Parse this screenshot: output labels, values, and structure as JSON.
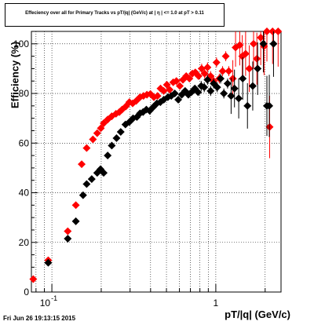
{
  "chart_data": {
    "type": "scatter",
    "title": "Effeciency over all for Primary Tracks vs pT/|q| (GeV/c) at | η | <= 1.0 at pT > 0.11",
    "xlabel": "pT/|q| (GeV/c)",
    "ylabel": "Efficiency (%)",
    "x_scale": "log",
    "xlim": [
      0.075,
      2.5
    ],
    "ylim": [
      0,
      105
    ],
    "x_tick_labels": [
      "10",
      "-1",
      "1"
    ],
    "y_ticks": [
      0,
      20,
      40,
      60,
      80,
      100
    ],
    "y_tick_labels": [
      "0",
      "20",
      "40",
      "60",
      "80",
      "100"
    ],
    "grid": true,
    "legend": "none",
    "series": [
      {
        "color": "#ff0000",
        "points": [
          [
            0.077,
            5.2
          ],
          [
            0.095,
            12.8
          ],
          [
            0.125,
            24.5
          ],
          [
            0.14,
            35.0
          ],
          [
            0.152,
            51.5
          ],
          [
            0.163,
            58.0
          ],
          [
            0.178,
            61.5
          ],
          [
            0.189,
            64.0
          ],
          [
            0.199,
            66.0
          ],
          [
            0.207,
            68.0
          ],
          [
            0.219,
            69.5
          ],
          [
            0.232,
            70.8
          ],
          [
            0.246,
            71.8
          ],
          [
            0.258,
            72.5
          ],
          [
            0.268,
            73.5
          ],
          [
            0.283,
            74.8
          ],
          [
            0.297,
            76.5
          ],
          [
            0.311,
            76.0
          ],
          [
            0.327,
            77.0
          ],
          [
            0.345,
            78.5
          ],
          [
            0.362,
            79.0
          ],
          [
            0.38,
            79.5
          ],
          [
            0.399,
            79.8
          ],
          [
            0.419,
            78.5
          ],
          [
            0.441,
            79.0
          ],
          [
            0.46,
            82.0
          ],
          [
            0.481,
            81.0
          ],
          [
            0.503,
            83.5
          ],
          [
            0.523,
            81.5
          ],
          [
            0.55,
            84.5
          ],
          [
            0.575,
            85.0
          ],
          [
            0.603,
            83.0
          ],
          [
            0.63,
            85.5
          ],
          [
            0.66,
            87.0
          ],
          [
            0.69,
            86.0
          ],
          [
            0.72,
            88.0
          ],
          [
            0.75,
            88.5
          ],
          [
            0.785,
            87.0
          ],
          [
            0.82,
            90.0
          ],
          [
            0.855,
            88.0
          ],
          [
            0.89,
            90.5
          ],
          [
            0.93,
            87.0
          ],
          [
            0.97,
            85.0
          ],
          [
            1.01,
            92.5
          ],
          [
            1.05,
            86.0
          ],
          [
            1.1,
            89.0
          ],
          [
            1.15,
            95.0
          ],
          [
            1.2,
            89.0
          ],
          [
            1.27,
            86.0
          ],
          [
            1.32,
            98.5
          ],
          [
            1.4,
            99.5
          ],
          [
            1.45,
            95.0
          ],
          [
            1.52,
            96.0
          ],
          [
            1.6,
            90.0
          ],
          [
            1.7,
            100.0
          ],
          [
            1.78,
            94.0
          ],
          [
            1.88,
            102.5
          ],
          [
            1.97,
            99.0
          ],
          [
            2.05,
            105.0
          ],
          [
            2.13,
            66.5
          ],
          [
            2.22,
            105.0
          ],
          [
            2.4,
            105.0
          ]
        ]
      },
      {
        "color": "#000000",
        "points": [
          [
            0.095,
            11.8
          ],
          [
            0.125,
            21.5
          ],
          [
            0.14,
            28.5
          ],
          [
            0.155,
            39.0
          ],
          [
            0.163,
            43.5
          ],
          [
            0.175,
            45.5
          ],
          [
            0.189,
            48.0
          ],
          [
            0.198,
            49.5
          ],
          [
            0.207,
            48.0
          ],
          [
            0.219,
            55.0
          ],
          [
            0.232,
            59.0
          ],
          [
            0.248,
            62.0
          ],
          [
            0.263,
            64.5
          ],
          [
            0.281,
            67.5
          ],
          [
            0.297,
            68.5
          ],
          [
            0.313,
            70.0
          ],
          [
            0.33,
            70.5
          ],
          [
            0.345,
            72.0
          ],
          [
            0.36,
            72.5
          ],
          [
            0.377,
            73.5
          ],
          [
            0.395,
            73.0
          ],
          [
            0.415,
            74.5
          ],
          [
            0.437,
            76.0
          ],
          [
            0.459,
            76.5
          ],
          [
            0.482,
            77.5
          ],
          [
            0.51,
            78.5
          ],
          [
            0.535,
            79.0
          ],
          [
            0.562,
            80.0
          ],
          [
            0.59,
            77.5
          ],
          [
            0.62,
            79.5
          ],
          [
            0.65,
            81.0
          ],
          [
            0.68,
            79.5
          ],
          [
            0.71,
            80.5
          ],
          [
            0.745,
            82.0
          ],
          [
            0.78,
            80.5
          ],
          [
            0.815,
            83.0
          ],
          [
            0.85,
            82.5
          ],
          [
            0.89,
            85.5
          ],
          [
            0.93,
            81.0
          ],
          [
            0.97,
            84.0
          ],
          [
            1.02,
            82.5
          ],
          [
            1.07,
            86.0
          ],
          [
            1.12,
            80.0
          ],
          [
            1.18,
            84.0
          ],
          [
            1.24,
            79.0
          ],
          [
            1.3,
            82.0
          ],
          [
            1.38,
            78.0
          ],
          [
            1.46,
            86.0
          ],
          [
            1.56,
            75.0
          ],
          [
            1.68,
            83.0
          ],
          [
            1.8,
            90.0
          ],
          [
            1.95,
            100.0
          ],
          [
            2.05,
            75.0
          ],
          [
            2.12,
            75.0
          ],
          [
            2.25,
            100.0
          ]
        ]
      }
    ]
  },
  "footer": {
    "timestamp": "Fri Jun 26 19:13:15 2015"
  }
}
